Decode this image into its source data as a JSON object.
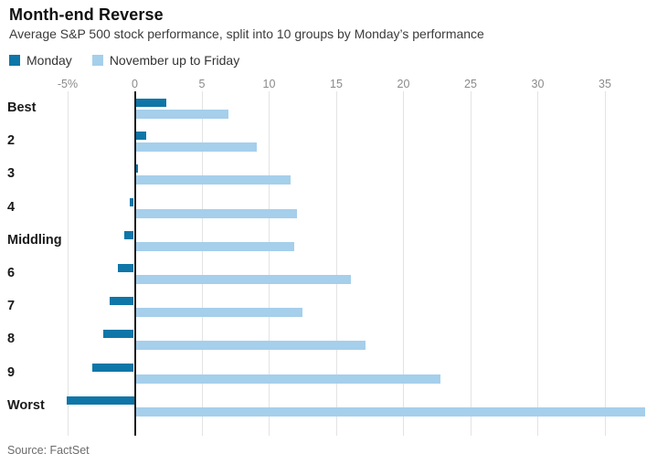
{
  "header": {
    "title": "Month-end Reverse",
    "subtitle": "Average S&P 500 stock performance, split into 10 groups by Monday’s performance"
  },
  "source": "Source: FactSet",
  "colors": {
    "monday_bar": "#0f76a8",
    "friday_bar": "#a5cfeb",
    "zero_line": "#1f1f1f",
    "grid_line": "#e3e3e3",
    "axis_text": "#8a8a8a"
  },
  "chart_data": {
    "type": "bar",
    "orientation": "horizontal",
    "title": "Month-end Reverse",
    "subtitle": "Average S&P 500 stock performance, split into 10 groups by Monday’s performance",
    "categories": [
      "Best",
      "2",
      "3",
      "4",
      "Middling",
      "6",
      "7",
      "8",
      "9",
      "Worst"
    ],
    "series": [
      {
        "name": "Monday",
        "color": "#0f76a8",
        "values": [
          2.3,
          0.8,
          0.1,
          -0.3,
          -0.7,
          -1.2,
          -1.8,
          -2.3,
          -3.1,
          -5.0
        ]
      },
      {
        "name": "November up to Friday",
        "color": "#a5cfeb",
        "values": [
          6.9,
          9.0,
          11.5,
          12.0,
          11.8,
          16.0,
          12.4,
          17.1,
          22.7,
          37.9
        ]
      }
    ],
    "x_axis": {
      "unit": "%",
      "tick_values": [
        -5,
        0,
        5,
        10,
        15,
        20,
        25,
        30,
        35
      ],
      "tick_labels": [
        "-5%",
        "0",
        "5",
        "10",
        "15",
        "20",
        "25",
        "30",
        "35"
      ]
    },
    "xlim": [
      -5,
      38.9
    ],
    "grid": "vertical",
    "legend_position": "top-left"
  }
}
